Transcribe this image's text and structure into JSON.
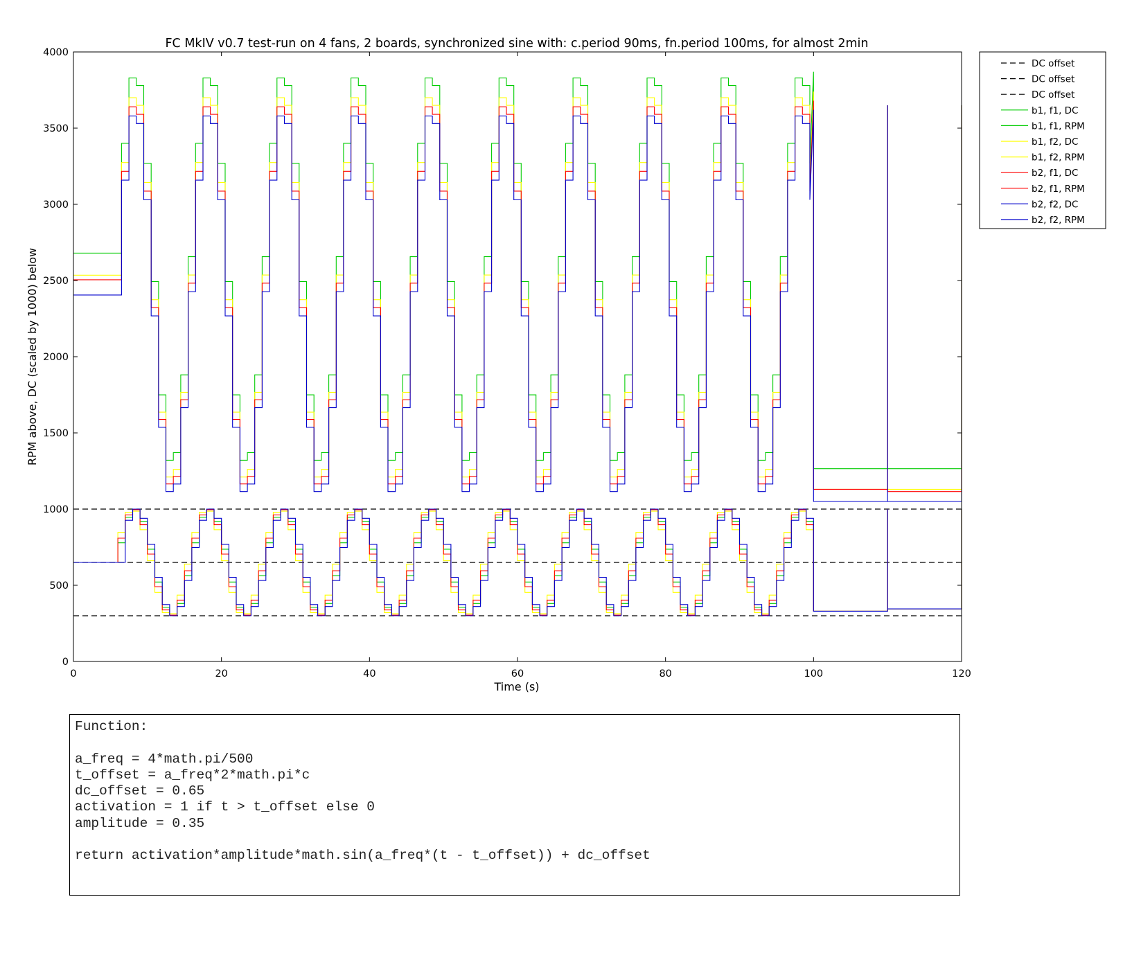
{
  "chart_data": {
    "type": "line",
    "title": "FC MkIV v0.7 test-run on 4 fans, 2 boards, synchronized sine with: c.period 90ms, fn.period 100ms, for almost 2min",
    "xlabel": "Time (s)",
    "ylabel": "RPM above, DC (scaled by 1000) below",
    "xlim": [
      0,
      120
    ],
    "ylim": [
      0,
      4000
    ],
    "xticks": [
      "0",
      "20",
      "40",
      "60",
      "80",
      "100",
      "120"
    ],
    "yticks": [
      "0",
      "500",
      "1000",
      "1500",
      "2000",
      "2500",
      "3000",
      "3500",
      "4000"
    ],
    "grid": false,
    "legend_position": "outside-right-top",
    "dc_offset_levels": [
      1000,
      650,
      300
    ],
    "series": [
      {
        "name": "DC offset",
        "color": "#000000",
        "style": "dashed",
        "kind": "hline",
        "y": 1000
      },
      {
        "name": "DC offset",
        "color": "#000000",
        "style": "dashed",
        "kind": "hline",
        "y": 650
      },
      {
        "name": "DC offset",
        "color": "#000000",
        "style": "dashed",
        "kind": "hline",
        "y": 300
      },
      {
        "name": "b1, f1, DC",
        "color": "#00cc00",
        "style": "solid",
        "kind": "dc",
        "shift": 0
      },
      {
        "name": "b1, f1, RPM",
        "color": "#00cc00",
        "style": "solid",
        "kind": "rpm",
        "base": 2680,
        "top": 3870,
        "bottom": 1280,
        "after": [
          1265,
          1265
        ]
      },
      {
        "name": "b1, f2, DC",
        "color": "#ffff00",
        "style": "solid",
        "kind": "dc",
        "shift": 0.35
      },
      {
        "name": "b1, f2, RPM",
        "color": "#ffff00",
        "style": "solid",
        "kind": "rpm",
        "base": 2535,
        "top": 3740,
        "bottom": 1170,
        "after": [
          1130,
          1130
        ]
      },
      {
        "name": "b2, f1, DC",
        "color": "#ff0000",
        "style": "solid",
        "kind": "dc",
        "shift": 0.15
      },
      {
        "name": "b2, f1, RPM",
        "color": "#ff0000",
        "style": "solid",
        "kind": "rpm",
        "base": 2505,
        "top": 3680,
        "bottom": 1125,
        "after": [
          1130,
          1115
        ]
      },
      {
        "name": "b2, f2, DC",
        "color": "#0000cc",
        "style": "solid",
        "kind": "dc",
        "shift": -0.15
      },
      {
        "name": "b2, f2, RPM",
        "color": "#0000cc",
        "style": "solid",
        "kind": "rpm",
        "base": 2405,
        "top": 3620,
        "bottom": 1075,
        "after": [
          1050,
          1050
        ]
      }
    ]
  },
  "function_box": {
    "lines": [
      "Function:",
      "",
      "a_freq = 4*math.pi/500",
      "t_offset = a_freq*2*math.pi*c",
      "dc_offset = 0.65",
      "activation = 1 if t > t_offset else 0",
      "amplitude = 0.35",
      "",
      "return activation*amplitude*math.sin(a_freq*(t - t_offset)) + dc_offset"
    ]
  }
}
